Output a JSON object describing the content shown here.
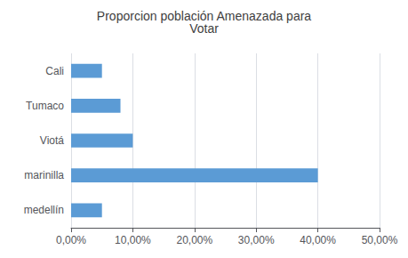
{
  "chart_data": {
    "type": "bar",
    "orientation": "horizontal",
    "title": "Proporcion población Amenazada para\nVotar",
    "categories": [
      "medellín",
      "marinilla",
      "Viotá",
      "Tumaco",
      "Cali"
    ],
    "values": [
      0.05,
      0.4,
      0.1,
      0.08,
      0.05
    ],
    "color": "#5B9BD5",
    "xlim": [
      0,
      0.5
    ],
    "xticks": [
      {
        "value": 0.0,
        "label": "0,00%"
      },
      {
        "value": 0.1,
        "label": "10,00%"
      },
      {
        "value": 0.2,
        "label": "20,00%"
      },
      {
        "value": 0.3,
        "label": "30,00%"
      },
      {
        "value": 0.4,
        "label": "40,00%"
      },
      {
        "value": 0.5,
        "label": "50,00%"
      }
    ],
    "grid": true
  }
}
